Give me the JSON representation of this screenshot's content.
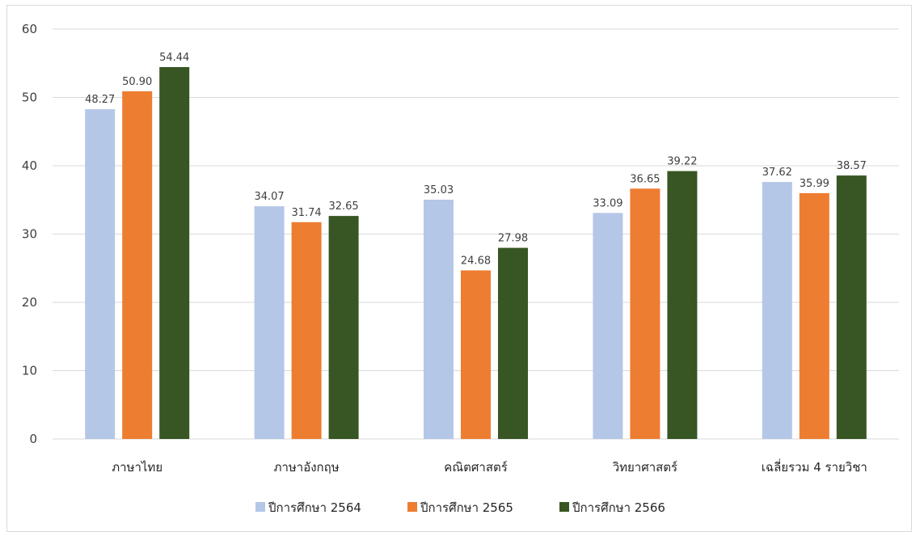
{
  "chart_data": {
    "type": "bar",
    "categories": [
      "ภาษาไทย",
      "ภาษาอังกฤษ",
      "คณิตศาสตร์",
      "วิทยาศาสตร์",
      "เฉลี่ยรวม 4 รายวิชา"
    ],
    "series": [
      {
        "name": "ปีการศึกษา 2564",
        "values": [
          48.27,
          34.07,
          35.03,
          33.09,
          37.62
        ],
        "labels": [
          "48.27",
          "34.07",
          "35.03",
          "33.09",
          "37.62"
        ],
        "color": "#b4c7e7"
      },
      {
        "name": "ปีการศึกษา 2565",
        "values": [
          50.9,
          31.74,
          24.68,
          36.65,
          35.99
        ],
        "labels": [
          "50.90",
          "31.74",
          "24.68",
          "36.65",
          "35.99"
        ],
        "color": "#ed7d31"
      },
      {
        "name": "ปีการศึกษา 2566",
        "values": [
          54.44,
          32.65,
          27.98,
          39.22,
          38.57
        ],
        "labels": [
          "54.44",
          "32.65",
          "27.98",
          "39.22",
          "38.57"
        ],
        "color": "#375623"
      }
    ],
    "y_ticks": [
      "0",
      "10",
      "20",
      "30",
      "40",
      "50",
      "60"
    ],
    "ylim": [
      0,
      60
    ],
    "grid": true,
    "legend_position": "bottom",
    "title": "",
    "xlabel": "",
    "ylabel": ""
  }
}
